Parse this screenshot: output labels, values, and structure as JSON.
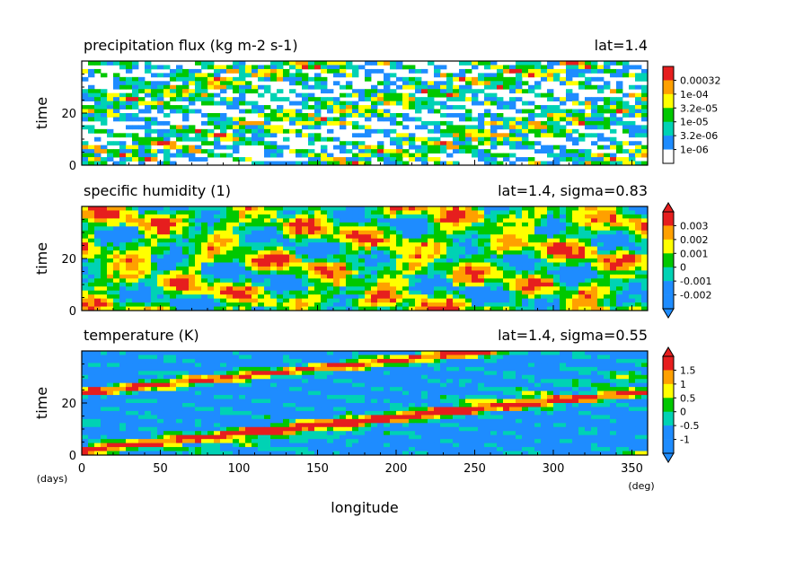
{
  "figure": {
    "x_axis_label": "longitude",
    "x_unit_label": "(deg)",
    "time_unit_label": "(days)"
  },
  "chart_data": [
    {
      "type": "heatmap",
      "title": "precipitation flux (kg m-2 s-1)",
      "annotation": "lat=1.4",
      "ylabel": "time",
      "xlim": [
        0,
        360
      ],
      "ylim": [
        0,
        40
      ],
      "y_ticks": [
        "0",
        "20"
      ],
      "x_ticks": [],
      "background_means_below_min_level": true,
      "colorbar": {
        "labels": [
          "0.00032",
          "1e-04",
          "3.2e-05",
          "1e-05",
          "3.2e-06",
          "1e-06"
        ],
        "colors": [
          "#ffffff",
          "#1e8cff",
          "#00d2b4",
          "#00c800",
          "#ffff00",
          "#ffa000",
          "#e61e1e"
        ],
        "arrow_top": false,
        "arrow_bottom": false
      }
    },
    {
      "type": "heatmap",
      "title": "specific humidity (1)",
      "annotation": "lat=1.4, sigma=0.83",
      "ylabel": "time",
      "xlim": [
        0,
        360
      ],
      "ylim": [
        0,
        40
      ],
      "y_ticks": [
        "0",
        "20"
      ],
      "x_ticks": [],
      "colorbar": {
        "labels": [
          "0.003",
          "0.002",
          "0.001",
          "0",
          "-0.001",
          "-0.002"
        ],
        "colors": [
          "#1e8cff",
          "#1e8cff",
          "#00d2b4",
          "#00c800",
          "#ffff00",
          "#ffa000",
          "#e61e1e"
        ],
        "arrow_top": true,
        "arrow_bottom": true
      }
    },
    {
      "type": "heatmap",
      "title": "temperature (K)",
      "annotation": "lat=1.4, sigma=0.55",
      "ylabel": "time",
      "xlim": [
        0,
        360
      ],
      "ylim": [
        0,
        40
      ],
      "y_ticks": [
        "0",
        "20"
      ],
      "x_ticks": [
        "0",
        "50",
        "100",
        "150",
        "200",
        "250",
        "300",
        "350"
      ],
      "colorbar": {
        "labels": [
          "1.5",
          "1",
          "0.5",
          "0",
          "-0.5",
          "-1"
        ],
        "colors": [
          "#1e8cff",
          "#1e8cff",
          "#00d2b4",
          "#00c800",
          "#ffff00",
          "#ffa000",
          "#e61e1e"
        ],
        "arrow_top": true,
        "arrow_bottom": true
      }
    }
  ]
}
